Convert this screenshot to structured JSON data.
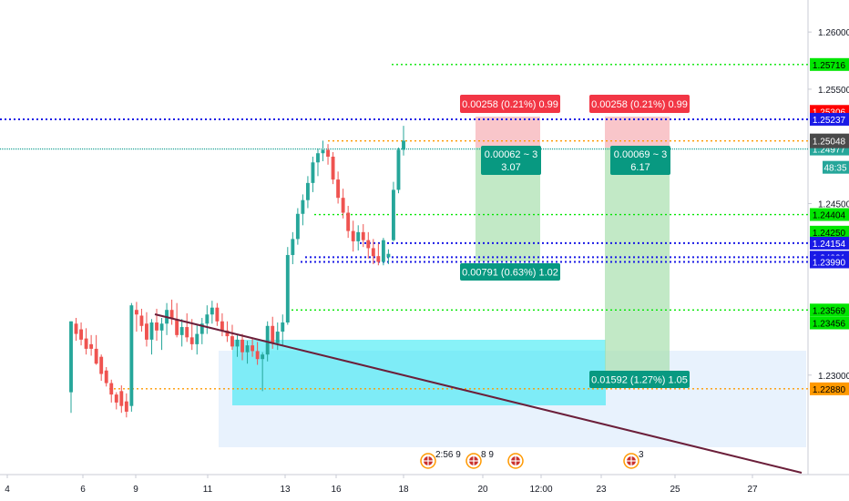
{
  "chart_data": {
    "type": "candlestick",
    "y_axis": {
      "ticks": [
        "1.26000",
        "1.25500",
        "1.24500",
        "1.23000"
      ],
      "range": [
        1.2213,
        1.2628
      ]
    },
    "x_axis": {
      "ticks": [
        "4",
        "6",
        "9",
        "11",
        "13",
        "16",
        "18",
        "20",
        "12:00",
        "23",
        "25",
        "27"
      ]
    },
    "levels": [
      {
        "price": 1.25716,
        "label": "1.25716",
        "color": "#00e600",
        "style": "dotted"
      },
      {
        "price": 1.25306,
        "label": "1.25306",
        "color": "#ff0000",
        "style": "dotted"
      },
      {
        "price": 1.25237,
        "label": "1.25237",
        "color": "#1a1ae6",
        "style": "dotted"
      },
      {
        "price": 1.25048,
        "label": "1.25048",
        "color": "#ff9900",
        "style": "dotted"
      },
      {
        "price": 1.24977,
        "label": "1.24977",
        "color": "#26a69a",
        "style": "dotted"
      },
      {
        "price": 1.24404,
        "label": "1.24404",
        "color": "#00e600",
        "style": "dotted"
      },
      {
        "price": 1.2425,
        "label": "1.24250",
        "color": "#00e600",
        "style": "dotted"
      },
      {
        "price": 1.24154,
        "label": "1.24154",
        "color": "#1a1ae6",
        "style": "dotted"
      },
      {
        "price": 1.24031,
        "label": "1.24031",
        "color": "#1a1ae6",
        "style": "dotted"
      },
      {
        "price": 1.2399,
        "label": "1.23990",
        "color": "#1a1ae6",
        "style": "dotted"
      },
      {
        "price": 1.23569,
        "label": "1.23569",
        "color": "#00e600",
        "style": "dotted"
      },
      {
        "price": 1.23456,
        "label": "1.23456",
        "color": "#00e600",
        "style": "dotted"
      },
      {
        "price": 1.2288,
        "label": "1.22880",
        "color": "#ff9900",
        "style": "dotted"
      }
    ],
    "current_price": {
      "label": "1.25048",
      "countdown": "48:35"
    },
    "position_labels": [
      {
        "text": "0.00258 (0.21%) 0.99",
        "color": "#f23645"
      },
      {
        "text": "0.00258 (0.21%) 0.99",
        "color": "#f23645"
      },
      {
        "line1": "0.00062 ~ 3",
        "line2": "3.07",
        "color": "#089981"
      },
      {
        "line1": "0.00069 ~ 3",
        "line2": "6.17",
        "color": "#089981"
      },
      {
        "text": "0.00791 (0.63%) 1.02",
        "color": "#089981"
      },
      {
        "text": "0.01592 (1.27%) 1.05",
        "color": "#089981"
      }
    ],
    "event_markers": [
      "2:56 9",
      "8 9",
      "3"
    ],
    "candles": [
      {
        "o": 1.2285,
        "h": 1.2347,
        "l": 1.2267,
        "c": 1.2347
      },
      {
        "o": 1.2345,
        "h": 1.235,
        "l": 1.233,
        "c": 1.2336
      },
      {
        "o": 1.234,
        "h": 1.2346,
        "l": 1.2326,
        "c": 1.2331
      },
      {
        "o": 1.2332,
        "h": 1.2341,
        "l": 1.2318,
        "c": 1.2323
      },
      {
        "o": 1.2327,
        "h": 1.2335,
        "l": 1.2317,
        "c": 1.2323
      },
      {
        "o": 1.2323,
        "h": 1.2335,
        "l": 1.2309,
        "c": 1.231
      },
      {
        "o": 1.2316,
        "h": 1.2318,
        "l": 1.2295,
        "c": 1.2301
      },
      {
        "o": 1.2304,
        "h": 1.2307,
        "l": 1.229,
        "c": 1.2293
      },
      {
        "o": 1.2293,
        "h": 1.2296,
        "l": 1.2276,
        "c": 1.2283
      },
      {
        "o": 1.2283,
        "h": 1.2285,
        "l": 1.227,
        "c": 1.2276
      },
      {
        "o": 1.2286,
        "h": 1.2291,
        "l": 1.2267,
        "c": 1.2273
      },
      {
        "o": 1.2277,
        "h": 1.2284,
        "l": 1.2263,
        "c": 1.2268
      },
      {
        "o": 1.2273,
        "h": 1.2363,
        "l": 1.2268,
        "c": 1.2361
      },
      {
        "o": 1.2357,
        "h": 1.2364,
        "l": 1.2338,
        "c": 1.2353
      },
      {
        "o": 1.2352,
        "h": 1.2358,
        "l": 1.2338,
        "c": 1.2343
      },
      {
        "o": 1.2345,
        "h": 1.2355,
        "l": 1.2325,
        "c": 1.2331
      },
      {
        "o": 1.2331,
        "h": 1.2349,
        "l": 1.2318,
        "c": 1.2346
      },
      {
        "o": 1.2346,
        "h": 1.2358,
        "l": 1.233,
        "c": 1.2339
      },
      {
        "o": 1.2339,
        "h": 1.235,
        "l": 1.2322,
        "c": 1.2345
      },
      {
        "o": 1.2345,
        "h": 1.2363,
        "l": 1.2335,
        "c": 1.2357
      },
      {
        "o": 1.2357,
        "h": 1.2366,
        "l": 1.2344,
        "c": 1.2349
      },
      {
        "o": 1.2349,
        "h": 1.2363,
        "l": 1.2333,
        "c": 1.2335
      },
      {
        "o": 1.2335,
        "h": 1.2349,
        "l": 1.2325,
        "c": 1.2342
      },
      {
        "o": 1.2342,
        "h": 1.2354,
        "l": 1.2329,
        "c": 1.2333
      },
      {
        "o": 1.2333,
        "h": 1.2349,
        "l": 1.2322,
        "c": 1.2327
      },
      {
        "o": 1.2327,
        "h": 1.2344,
        "l": 1.2318,
        "c": 1.2336
      },
      {
        "o": 1.2336,
        "h": 1.235,
        "l": 1.2327,
        "c": 1.2345
      },
      {
        "o": 1.2345,
        "h": 1.2361,
        "l": 1.2336,
        "c": 1.2353
      },
      {
        "o": 1.2353,
        "h": 1.2365,
        "l": 1.2345,
        "c": 1.2359
      },
      {
        "o": 1.2359,
        "h": 1.2363,
        "l": 1.2343,
        "c": 1.2347
      },
      {
        "o": 1.2347,
        "h": 1.2354,
        "l": 1.2334,
        "c": 1.2339
      },
      {
        "o": 1.2339,
        "h": 1.2347,
        "l": 1.2329,
        "c": 1.2334
      },
      {
        "o": 1.2334,
        "h": 1.2344,
        "l": 1.2322,
        "c": 1.2325
      },
      {
        "o": 1.2325,
        "h": 1.2336,
        "l": 1.2316,
        "c": 1.2331
      },
      {
        "o": 1.2331,
        "h": 1.2336,
        "l": 1.2313,
        "c": 1.232
      },
      {
        "o": 1.232,
        "h": 1.233,
        "l": 1.231,
        "c": 1.2326
      },
      {
        "o": 1.2326,
        "h": 1.2333,
        "l": 1.2316,
        "c": 1.2321
      },
      {
        "o": 1.2321,
        "h": 1.2329,
        "l": 1.2309,
        "c": 1.2314
      },
      {
        "o": 1.2314,
        "h": 1.232,
        "l": 1.2286,
        "c": 1.2318
      },
      {
        "o": 1.2318,
        "h": 1.2347,
        "l": 1.2312,
        "c": 1.2343
      },
      {
        "o": 1.2343,
        "h": 1.2351,
        "l": 1.2323,
        "c": 1.2328
      },
      {
        "o": 1.2328,
        "h": 1.2346,
        "l": 1.2322,
        "c": 1.2338
      },
      {
        "o": 1.2338,
        "h": 1.2353,
        "l": 1.2326,
        "c": 1.2346
      },
      {
        "o": 1.2346,
        "h": 1.2412,
        "l": 1.2344,
        "c": 1.2405
      },
      {
        "o": 1.2405,
        "h": 1.2425,
        "l": 1.2397,
        "c": 1.2419
      },
      {
        "o": 1.2419,
        "h": 1.2446,
        "l": 1.2414,
        "c": 1.2441
      },
      {
        "o": 1.2441,
        "h": 1.2458,
        "l": 1.2431,
        "c": 1.2453
      },
      {
        "o": 1.2453,
        "h": 1.2474,
        "l": 1.2446,
        "c": 1.2468
      },
      {
        "o": 1.2468,
        "h": 1.2491,
        "l": 1.246,
        "c": 1.2486
      },
      {
        "o": 1.2486,
        "h": 1.2498,
        "l": 1.2474,
        "c": 1.2494
      },
      {
        "o": 1.2494,
        "h": 1.2505,
        "l": 1.2487,
        "c": 1.2497
      },
      {
        "o": 1.2497,
        "h": 1.2502,
        "l": 1.2484,
        "c": 1.2491
      },
      {
        "o": 1.2491,
        "h": 1.2495,
        "l": 1.2467,
        "c": 1.2471
      },
      {
        "o": 1.2471,
        "h": 1.2478,
        "l": 1.245,
        "c": 1.2455
      },
      {
        "o": 1.2455,
        "h": 1.2463,
        "l": 1.2437,
        "c": 1.2442
      },
      {
        "o": 1.2442,
        "h": 1.2448,
        "l": 1.242,
        "c": 1.2426
      },
      {
        "o": 1.2426,
        "h": 1.2435,
        "l": 1.2408,
        "c": 1.2417
      },
      {
        "o": 1.2417,
        "h": 1.2431,
        "l": 1.2409,
        "c": 1.2425
      },
      {
        "o": 1.2425,
        "h": 1.2432,
        "l": 1.2412,
        "c": 1.2418
      },
      {
        "o": 1.2418,
        "h": 1.2425,
        "l": 1.2402,
        "c": 1.2411
      },
      {
        "o": 1.2411,
        "h": 1.2419,
        "l": 1.2397,
        "c": 1.2404
      },
      {
        "o": 1.2404,
        "h": 1.2415,
        "l": 1.2396,
        "c": 1.2399
      },
      {
        "o": 1.2399,
        "h": 1.242,
        "l": 1.2396,
        "c": 1.2418
      },
      {
        "o": 1.2403,
        "h": 1.241,
        "l": 1.2397,
        "c": 1.2406
      },
      {
        "o": 1.2418,
        "h": 1.2469,
        "l": 1.2417,
        "c": 1.2462
      },
      {
        "o": 1.2462,
        "h": 1.2499,
        "l": 1.2459,
        "c": 1.2497
      },
      {
        "o": 1.2497,
        "h": 1.2518,
        "l": 1.2492,
        "c": 1.2505
      }
    ]
  }
}
